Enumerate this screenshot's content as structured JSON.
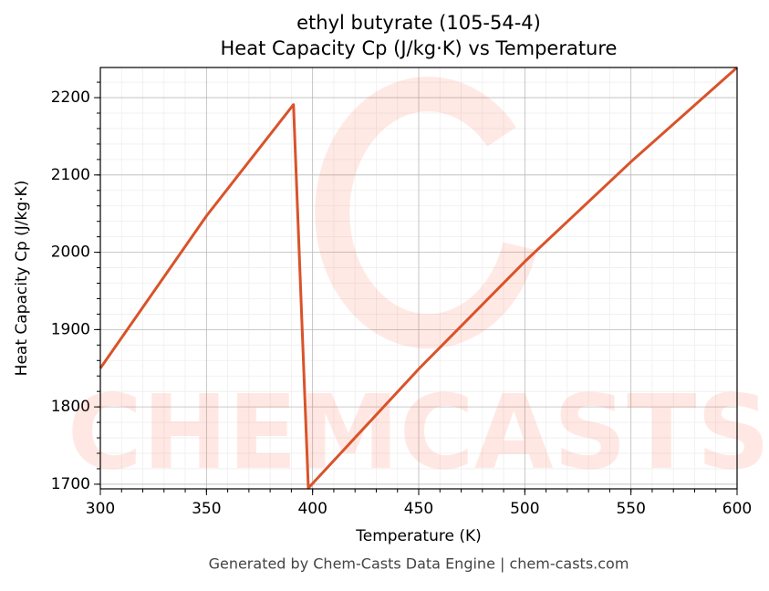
{
  "chart_data": {
    "type": "line",
    "title": "ethyl butyrate (105-54-4)",
    "subtitle": "Heat Capacity Cp (J/kg·K) vs Temperature",
    "xlabel": "Temperature (K)",
    "ylabel": "Heat Capacity Cp (J/kg·K)",
    "footer": "Generated by Chem-Casts Data Engine | chem-casts.com",
    "watermark": "CHEMCASTS",
    "x": [
      300,
      350,
      391,
      398,
      450,
      500,
      550,
      600
    ],
    "series": [
      {
        "name": "Cp",
        "color": "#d9532a",
        "values": [
          1850,
          2047,
          2191,
          1695,
          1849,
          1988,
          2117,
          2239
        ]
      }
    ],
    "xlim": [
      300,
      600
    ],
    "xticks": [
      300,
      350,
      400,
      450,
      500,
      550,
      600
    ],
    "ylim": [
      1694,
      2239
    ],
    "yticks": [
      1700,
      1800,
      1900,
      2000,
      2100,
      2200
    ],
    "grid": true,
    "minor_grid": true
  }
}
